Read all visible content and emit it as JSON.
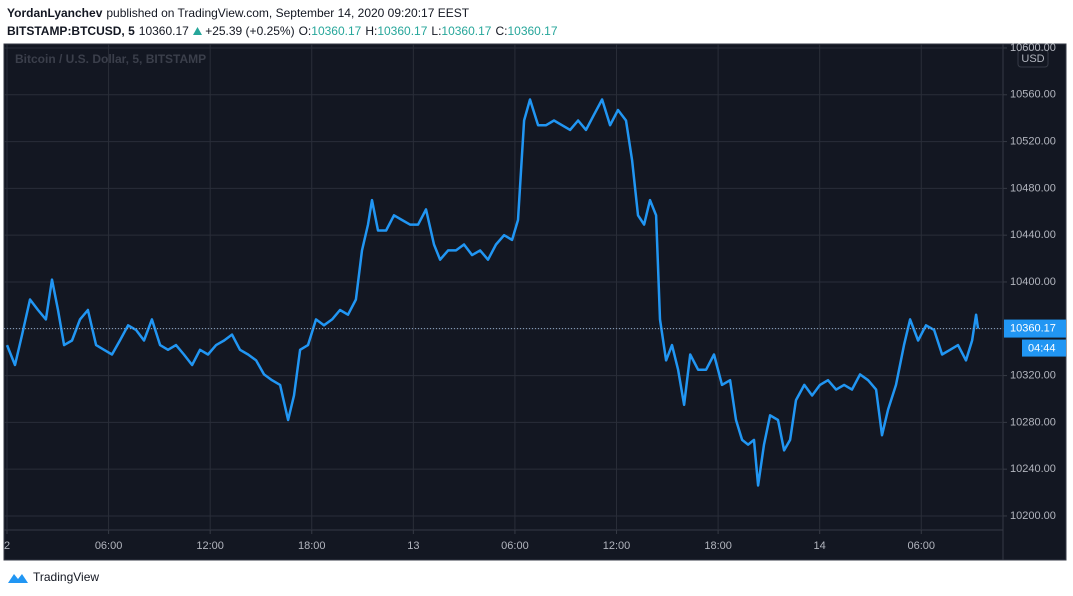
{
  "header": {
    "author": "YordanLyanchev",
    "published": "published on TradingView.com, September 14, 2020 09:20:17 EEST",
    "symbol": "BITSTAMP:BTCUSD, 5",
    "price": "10360.17",
    "change": "+25.39 (+0.25%)",
    "ohlc": [
      {
        "label": "O:",
        "value": "10360.17"
      },
      {
        "label": "H:",
        "value": "10360.17"
      },
      {
        "label": "L:",
        "value": "10360.17"
      },
      {
        "label": "C:",
        "value": "10360.17"
      }
    ]
  },
  "chart_data": {
    "type": "line",
    "watermark": "Bitcoin / U.S. Dollar, 5, BITSTAMP",
    "currency": "USD",
    "color": "#2196f3",
    "grid": true,
    "x": [
      0,
      0.47,
      0.89,
      1.36,
      1.83,
      2.3,
      2.66,
      3.01,
      3.37,
      3.84,
      4.31,
      4.78,
      5.26,
      5.73,
      6.2,
      6.67,
      7.15,
      7.62,
      8.09,
      8.56,
      9.04,
      9.51,
      9.98,
      10.45,
      10.93,
      11.4,
      11.87,
      12.35,
      12.82,
      13.29,
      13.76,
      14.24,
      14.71,
      15.18,
      15.65,
      16.13,
      16.6,
      16.95,
      17.31,
      17.78,
      18.25,
      18.72,
      19.2,
      19.67,
      20.14,
      20.61,
      20.97,
      21.32,
      21.56,
      21.91,
      22.39,
      22.86,
      23.33,
      23.8,
      24.28,
      24.75,
      25.22,
      25.58,
      26.05,
      26.52,
      26.99,
      27.47,
      27.94,
      28.41,
      28.88,
      29.36,
      29.83,
      30.18,
      30.54,
      30.89,
      31.37,
      31.84,
      32.31,
      32.78,
      33.26,
      33.73,
      34.2,
      34.67,
      35.15,
      35.62,
      36.09,
      36.56,
      36.92,
      37.27,
      37.63,
      37.98,
      38.34,
      38.57,
      38.93,
      39.28,
      39.64,
      39.99,
      40.35,
      40.82,
      41.29,
      41.76,
      42.23,
      42.71,
      43.06,
      43.42,
      43.77,
      44.12,
      44.36,
      44.71,
      45.07,
      45.54,
      45.9,
      46.25,
      46.6,
      47.09,
      47.55,
      48.02,
      48.49,
      48.97,
      49.44,
      49.91,
      50.38,
      50.86,
      51.33,
      51.68,
      52.04,
      52.51,
      52.98,
      53.34,
      53.81,
      54.28,
      54.76,
      55.23,
      55.7,
      56.17,
      56.64,
      57.0,
      57.24,
      57.35
    ],
    "values": [
      10346,
      10329,
      10355,
      10385,
      10376,
      10368,
      10402,
      10376,
      10346,
      10350,
      10368,
      10376,
      10346,
      10342,
      10338,
      10350,
      10363,
      10359,
      10350,
      10368,
      10346,
      10342,
      10346,
      10338,
      10329,
      10342,
      10338,
      10346,
      10350,
      10355,
      10342,
      10338,
      10333,
      10321,
      10316,
      10312,
      10282,
      10303,
      10342,
      10346,
      10368,
      10363,
      10368,
      10376,
      10372,
      10385,
      10427,
      10449,
      10470,
      10444,
      10444,
      10457,
      10453,
      10449,
      10449,
      10462,
      10432,
      10419,
      10427,
      10427,
      10432,
      10423,
      10427,
      10419,
      10432,
      10440,
      10436,
      10453,
      10538,
      10556,
      10534,
      10534,
      10538,
      10534,
      10530,
      10538,
      10530,
      10543,
      10556,
      10534,
      10547,
      10538,
      10504,
      10457,
      10449,
      10470,
      10457,
      10368,
      10333,
      10346,
      10325,
      10295,
      10338,
      10325,
      10325,
      10338,
      10312,
      10316,
      10282,
      10265,
      10261,
      10265,
      10226,
      10261,
      10286,
      10282,
      10256,
      10265,
      10299,
      10312,
      10303,
      10312,
      10316,
      10308,
      10312,
      10308,
      10321,
      10316,
      10308,
      10269,
      10291,
      10312,
      10346,
      10368,
      10350,
      10363,
      10359,
      10338,
      10342,
      10346,
      10333,
      10350,
      10372,
      10360.17
    ],
    "xlim": [
      0,
      58.65
    ],
    "xticks": [
      {
        "value": 0,
        "label": "2"
      },
      {
        "value": 6,
        "label": "06:00"
      },
      {
        "value": 12,
        "label": "12:00"
      },
      {
        "value": 18,
        "label": "18:00"
      },
      {
        "value": 24,
        "label": "13"
      },
      {
        "value": 30,
        "label": "06:00"
      },
      {
        "value": 36,
        "label": "12:00"
      },
      {
        "value": 42,
        "label": "18:00"
      },
      {
        "value": 48,
        "label": "14"
      },
      {
        "value": 54,
        "label": "06:00"
      }
    ],
    "ylim": [
      10188,
      10603.4
    ],
    "yticks": [
      {
        "value": 10200,
        "label": "10200.00"
      },
      {
        "value": 10240,
        "label": "10240.00"
      },
      {
        "value": 10280,
        "label": "10280.00"
      },
      {
        "value": 10320,
        "label": "10320.00"
      },
      {
        "value": 10360,
        "label": "10360.00"
      },
      {
        "value": 10400,
        "label": "10400.00"
      },
      {
        "value": 10440,
        "label": "10440.00"
      },
      {
        "value": 10480,
        "label": "10480.00"
      },
      {
        "value": 10520,
        "label": "10520.00"
      },
      {
        "value": 10560,
        "label": "10560.00"
      },
      {
        "value": 10600,
        "label": "10600.00"
      }
    ],
    "last_price": 10360.17,
    "countdown": "04:44"
  },
  "footer": {
    "brand": "TradingView"
  }
}
